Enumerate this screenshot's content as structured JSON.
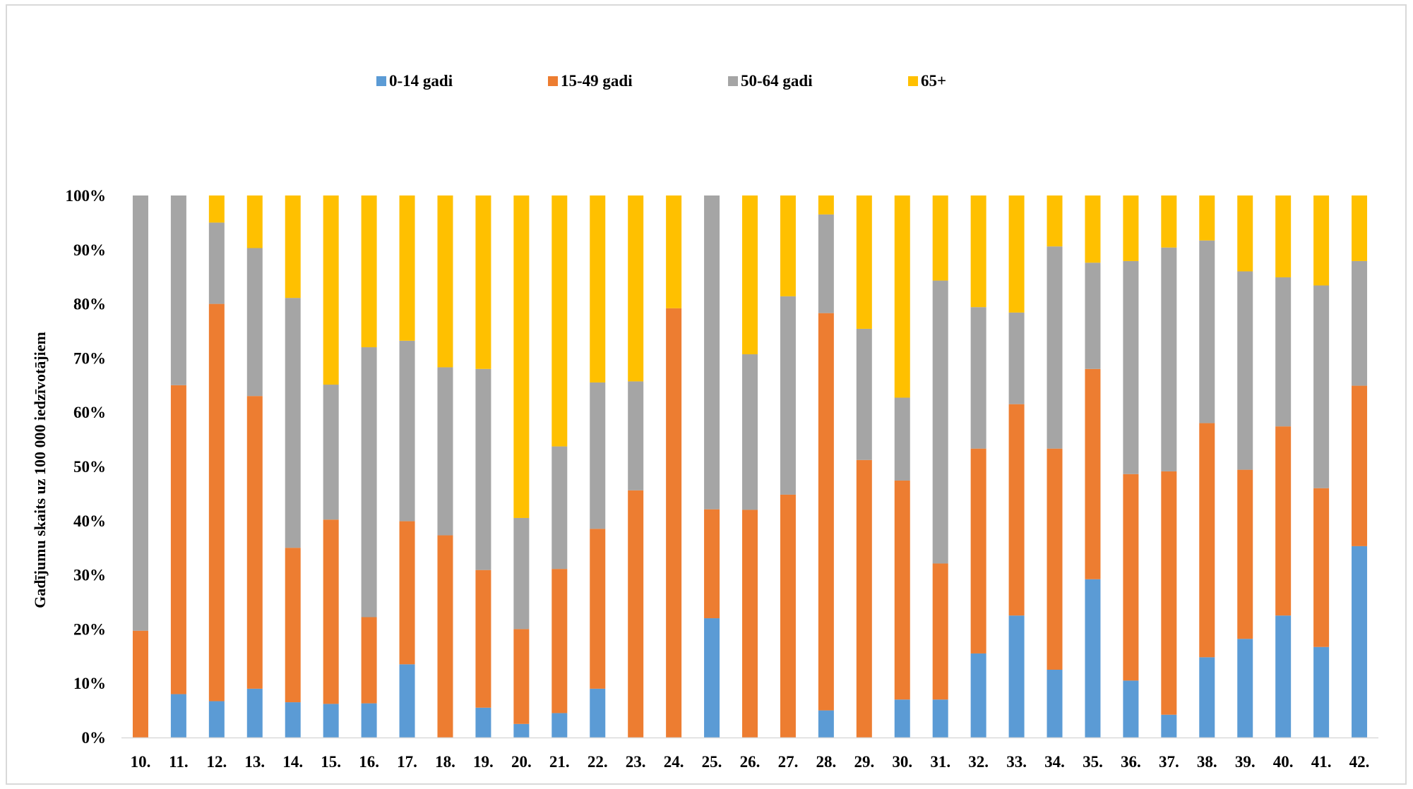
{
  "chart_data": {
    "type": "bar",
    "stacked": "percent",
    "title": "",
    "xlabel": "",
    "ylabel": "Gadījumu skaits uz 100 000 iedzīvotājiem",
    "ylim": [
      0,
      100
    ],
    "y_ticks": [
      "0%",
      "10%",
      "20%",
      "30%",
      "40%",
      "50%",
      "60%",
      "70%",
      "80%",
      "90%",
      "100%"
    ],
    "grid": false,
    "legend_position": "top",
    "categories": [
      "10.",
      "11.",
      "12.",
      "13.",
      "14.",
      "15.",
      "16.",
      "17.",
      "18.",
      "19.",
      "20.",
      "21.",
      "22.",
      "23.",
      "24.",
      "25.",
      "26.",
      "27.",
      "28.",
      "29.",
      "30.",
      "31.",
      "32.",
      "33.",
      "34.",
      "35.",
      "36.",
      "37.",
      "38.",
      "39.",
      "40.",
      "41.",
      "42."
    ],
    "series": [
      {
        "name": "0-14 gadi",
        "color": "#5B9BD5",
        "values": [
          0,
          8,
          6.7,
          9,
          6.5,
          6.2,
          6.3,
          13.5,
          0,
          5.5,
          2.5,
          4.5,
          9,
          0,
          0,
          22,
          0,
          0,
          5,
          0,
          7,
          7,
          15.5,
          22.5,
          12.5,
          29.2,
          10.5,
          4.2,
          14.8,
          18.2,
          22.5,
          16.7,
          35.3
        ]
      },
      {
        "name": "15-49 gadi",
        "color": "#ED7D31",
        "values": [
          19.7,
          57,
          73.3,
          54,
          28.5,
          34,
          15.9,
          26.4,
          37.3,
          25.4,
          17.5,
          26.6,
          29.5,
          45.6,
          79.2,
          20.1,
          42,
          44.8,
          73.3,
          51.2,
          40.4,
          25.1,
          37.8,
          39,
          40.8,
          38.8,
          38.1,
          44.9,
          43.2,
          31.2,
          34.9,
          29.3,
          29.6
        ]
      },
      {
        "name": "50-64 gadi",
        "color": "#A5A5A5",
        "values": [
          80.3,
          35,
          15,
          27.3,
          46.1,
          24.9,
          49.8,
          33.3,
          31,
          37.1,
          20.5,
          22.6,
          27,
          20.1,
          0,
          57.9,
          28.7,
          36.6,
          18.2,
          24.2,
          15.3,
          52.2,
          26.1,
          16.9,
          37.3,
          19.6,
          39.3,
          41.3,
          33.7,
          36.6,
          27.5,
          37.4,
          23
        ]
      },
      {
        "name": "65+",
        "color": "#FFC000",
        "values": [
          0,
          0,
          5,
          9.7,
          18.9,
          34.9,
          28,
          26.8,
          31.7,
          32,
          59.5,
          46.3,
          34.5,
          34.3,
          20.8,
          0,
          29.3,
          18.6,
          3.5,
          24.6,
          37.3,
          15.7,
          20.6,
          21.6,
          9.4,
          12.4,
          12.1,
          9.6,
          8.3,
          14,
          15.1,
          16.6,
          12.1
        ]
      }
    ]
  }
}
